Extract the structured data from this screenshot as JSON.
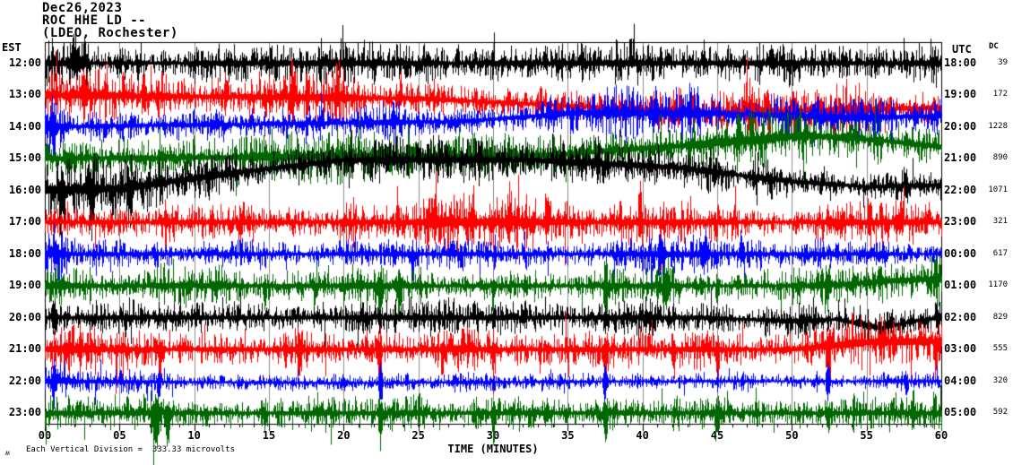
{
  "header": {
    "date": "Dec26,2023",
    "station": "ROC HHE LD --",
    "location": "(LDEO, Rochester)"
  },
  "axes": {
    "left_header": "EST",
    "right_header": "UTC",
    "dc_header": "DC",
    "x_title": "TIME (MINUTES)",
    "x_tick_labels": [
      "00",
      "05",
      "10",
      "15",
      "20",
      "25",
      "30",
      "35",
      "40",
      "45",
      "50",
      "55",
      "60"
    ],
    "x_min": 0,
    "x_max": 60,
    "x_tick_step": 5
  },
  "footnote": {
    "mark": "ʍ",
    "text": "Each Vertical Division =  333.33 microvolts"
  },
  "colors": {
    "background": "#ffffff",
    "border": "#000000",
    "grid": "#8c8c8c",
    "trace_black": "#000000",
    "trace_red": "#ff0000",
    "trace_blue": "#0000ff",
    "trace_green": "#006600"
  },
  "chart_data": {
    "type": "line",
    "subtype": "helicorder-seismogram",
    "title": "ROC HHE LD -- (LDEO, Rochester) Dec26,2023",
    "xlabel": "TIME (MINUTES)",
    "x_range": [
      0,
      60
    ],
    "grid": "vertical gray lines every 5 minutes",
    "vertical_division_microvolts": 333.33,
    "left_axis_label": "EST",
    "right_axis_label": "UTC",
    "dc_column_label": "DC",
    "traces": [
      {
        "est": "12:00",
        "utc": "18:00",
        "dc": 39,
        "color": "#000000",
        "amp": 12,
        "env": [
          [
            0,
            3,
            1.7
          ]
        ],
        "drift": [
          [
            0,
            0
          ],
          [
            60,
            0
          ]
        ],
        "spikes": [
          [
            2,
            0.5,
            14,
            10
          ],
          [
            27.6,
            0.2,
            26,
            6
          ],
          [
            33.5,
            0.15,
            20,
            5
          ],
          [
            41.2,
            0.15,
            18,
            5
          ],
          [
            44.1,
            0.15,
            20,
            5
          ],
          [
            48.6,
            0.2,
            24,
            6
          ],
          [
            55.8,
            0.15,
            16,
            5
          ]
        ]
      },
      {
        "est": "13:00",
        "utc": "19:00",
        "dc": 172,
        "color": "#ff0000",
        "amp": 13,
        "env": [
          [
            0,
            22,
            1.2
          ],
          [
            45,
            56,
            1.35
          ]
        ],
        "drift": [
          [
            0,
            0
          ],
          [
            25,
            4
          ],
          [
            35,
            12
          ],
          [
            45,
            20
          ],
          [
            50,
            18
          ],
          [
            60,
            14
          ]
        ],
        "spikes": [
          [
            2.6,
            0.2,
            26,
            8
          ],
          [
            6.6,
            0.2,
            24,
            8
          ],
          [
            12.1,
            0.2,
            22,
            8
          ],
          [
            16.6,
            0.15,
            28,
            8
          ],
          [
            19.6,
            0.15,
            24,
            6
          ],
          [
            23.8,
            0.12,
            34,
            6
          ],
          [
            47.2,
            0.3,
            18,
            16
          ],
          [
            50.1,
            0.3,
            20,
            16
          ]
        ]
      },
      {
        "est": "14:00",
        "utc": "20:00",
        "dc": 1228,
        "color": "#0000ff",
        "amp": 11,
        "env": [
          [
            0,
            1.5,
            1.8
          ],
          [
            33,
            50,
            1.25
          ]
        ],
        "drift": [
          [
            0,
            0
          ],
          [
            28,
            -6
          ],
          [
            36,
            -16
          ],
          [
            47,
            -14
          ],
          [
            54,
            -10
          ],
          [
            60,
            -12
          ]
        ],
        "spikes": [
          [
            0.5,
            0.3,
            22,
            18
          ],
          [
            40.9,
            0.2,
            28,
            10
          ],
          [
            43.1,
            0.2,
            24,
            8
          ],
          [
            58.2,
            0.15,
            18,
            16
          ]
        ]
      },
      {
        "est": "15:00",
        "utc": "21:00",
        "dc": 890,
        "color": "#006600",
        "amp": 11,
        "env": [
          [
            0,
            30,
            1.3
          ],
          [
            43,
            56,
            1.65
          ],
          [
            56,
            60,
            1.2
          ]
        ],
        "drift": [
          [
            0,
            0
          ],
          [
            34,
            -4
          ],
          [
            44,
            -16
          ],
          [
            51,
            -26
          ],
          [
            56,
            -20
          ],
          [
            60,
            -13
          ]
        ],
        "spikes": [
          [
            1.6,
            0.3,
            8,
            28
          ],
          [
            3.3,
            0.2,
            6,
            24
          ],
          [
            7.6,
            0.12,
            8,
            16
          ],
          [
            23.1,
            0.2,
            10,
            22
          ]
        ]
      },
      {
        "est": "16:00",
        "utc": "22:00",
        "dc": 1071,
        "color": "#000000",
        "amp": 13,
        "env": [
          [
            0,
            8,
            1.45
          ],
          [
            55,
            60,
            1.15
          ]
        ],
        "drift": [
          [
            0,
            0
          ],
          [
            5,
            -2
          ],
          [
            12,
            -18
          ],
          [
            20,
            -34
          ],
          [
            32,
            -34
          ],
          [
            42,
            -26
          ],
          [
            50,
            -10
          ],
          [
            55,
            -4
          ],
          [
            60,
            -6
          ]
        ],
        "spikes": [
          [
            1.1,
            0.3,
            8,
            36
          ],
          [
            3.1,
            0.3,
            8,
            42
          ],
          [
            5.6,
            0.2,
            8,
            32
          ],
          [
            57.6,
            0.2,
            22,
            10
          ]
        ]
      },
      {
        "est": "17:00",
        "utc": "23:00",
        "dc": 321,
        "color": "#ff0000",
        "amp": 12,
        "env": [
          [
            20,
            36,
            1.4
          ]
        ],
        "drift": [
          [
            0,
            0
          ],
          [
            60,
            0
          ]
        ],
        "spikes": [
          [
            8.1,
            0.15,
            16,
            10
          ],
          [
            23.6,
            0.2,
            28,
            14
          ],
          [
            26.1,
            0.2,
            32,
            12
          ],
          [
            28.6,
            0.2,
            28,
            16
          ],
          [
            31.1,
            0.2,
            34,
            12
          ],
          [
            33.6,
            0.2,
            28,
            12
          ],
          [
            39.8,
            0.15,
            36,
            10
          ],
          [
            55.2,
            0.2,
            18,
            8
          ]
        ]
      },
      {
        "est": "18:00",
        "utc": "00:00",
        "dc": 617,
        "color": "#0000ff",
        "amp": 9,
        "env": [
          [
            0,
            2,
            1.7
          ],
          [
            38,
            48,
            1.35
          ]
        ],
        "drift": [
          [
            0,
            0
          ],
          [
            60,
            0
          ]
        ],
        "spikes": [
          [
            0.7,
            0.2,
            20,
            16
          ],
          [
            24.6,
            0.2,
            6,
            26
          ],
          [
            30.1,
            0.1,
            10,
            18
          ],
          [
            41.2,
            0.25,
            26,
            14
          ],
          [
            44.2,
            0.25,
            28,
            12
          ],
          [
            46.6,
            0.2,
            24,
            10
          ]
        ]
      },
      {
        "est": "19:00",
        "utc": "01:00",
        "dc": 1170,
        "color": "#006600",
        "amp": 11,
        "env": [
          [
            0,
            10,
            1.15
          ],
          [
            10,
            26,
            1.3
          ],
          [
            50,
            60,
            1.45
          ]
        ],
        "drift": [
          [
            0,
            0
          ],
          [
            52,
            0
          ],
          [
            57,
            -6
          ],
          [
            60,
            -8
          ]
        ],
        "spikes": [
          [
            14.7,
            0.15,
            8,
            32
          ],
          [
            22.4,
            0.25,
            10,
            44
          ],
          [
            23.7,
            0.2,
            8,
            36
          ],
          [
            30,
            0.15,
            8,
            28
          ],
          [
            37.5,
            0.2,
            10,
            46
          ],
          [
            41.6,
            0.3,
            22,
            22
          ],
          [
            45,
            0.15,
            8,
            28
          ],
          [
            52.4,
            0.15,
            8,
            26
          ]
        ]
      },
      {
        "est": "20:00",
        "utc": "02:00",
        "dc": 829,
        "color": "#000000",
        "amp": 10,
        "env": [
          [
            40,
            60,
            1.1
          ]
        ],
        "drift": [
          [
            0,
            0
          ],
          [
            44,
            0
          ],
          [
            50,
            4
          ],
          [
            53,
            2
          ],
          [
            56,
            12
          ],
          [
            58,
            4
          ],
          [
            60,
            0
          ]
        ],
        "spikes": [
          [
            0.6,
            0.2,
            14,
            10
          ],
          [
            7.6,
            0.1,
            6,
            16
          ],
          [
            22.4,
            0.15,
            8,
            18
          ],
          [
            30,
            0.1,
            6,
            14
          ],
          [
            37.5,
            0.15,
            8,
            18
          ],
          [
            52.4,
            0.1,
            6,
            14
          ]
        ]
      },
      {
        "est": "21:00",
        "utc": "03:00",
        "dc": 555,
        "color": "#ff0000",
        "amp": 12,
        "env": [
          [
            0,
            10,
            1.1
          ],
          [
            52,
            60,
            1.15
          ]
        ],
        "drift": [
          [
            0,
            0
          ],
          [
            50,
            0
          ],
          [
            55,
            -8
          ],
          [
            60,
            -9
          ]
        ],
        "spikes": [
          [
            7.7,
            0.2,
            12,
            38
          ],
          [
            17,
            0.2,
            10,
            40
          ],
          [
            21.5,
            0.15,
            20,
            10
          ],
          [
            22.4,
            0.2,
            12,
            44
          ],
          [
            26.6,
            0.15,
            8,
            26
          ],
          [
            30,
            0.2,
            10,
            42
          ],
          [
            33.1,
            0.15,
            8,
            24
          ],
          [
            37.5,
            0.2,
            12,
            46
          ],
          [
            42.1,
            0.15,
            8,
            26
          ],
          [
            45,
            0.15,
            8,
            30
          ],
          [
            52.4,
            0.2,
            12,
            42
          ],
          [
            59.6,
            0.15,
            8,
            50
          ]
        ]
      },
      {
        "est": "22:00",
        "utc": "04:00",
        "dc": 320,
        "color": "#0000ff",
        "amp": 6,
        "env": [
          [
            0,
            1.5,
            2
          ],
          [
            57,
            60,
            1.3
          ]
        ],
        "drift": [
          [
            0,
            0
          ],
          [
            20,
            2
          ],
          [
            40,
            0
          ],
          [
            60,
            0
          ]
        ],
        "spikes": [
          [
            0.6,
            0.25,
            24,
            20
          ],
          [
            7.6,
            0.15,
            10,
            26
          ],
          [
            22.45,
            0.2,
            26,
            30
          ],
          [
            30,
            0.1,
            8,
            14
          ],
          [
            37.5,
            0.2,
            24,
            28
          ],
          [
            45,
            0.1,
            8,
            12
          ],
          [
            52.4,
            0.2,
            22,
            26
          ],
          [
            57.6,
            0.15,
            10,
            16
          ]
        ]
      },
      {
        "est": "23:00",
        "utc": "05:00",
        "dc": 592,
        "color": "#006600",
        "amp": 12,
        "env": [
          [
            0,
            5,
            1.15
          ]
        ],
        "drift": [
          [
            0,
            0
          ],
          [
            60,
            0
          ]
        ],
        "spikes": [
          [
            7.4,
            0.4,
            12,
            36
          ],
          [
            8.2,
            0.3,
            10,
            40
          ],
          [
            14.7,
            0.15,
            6,
            22
          ],
          [
            22.45,
            0.2,
            10,
            36
          ],
          [
            30,
            0.2,
            8,
            34
          ],
          [
            33.6,
            0.2,
            18,
            18
          ],
          [
            37.5,
            0.2,
            10,
            38
          ],
          [
            45,
            0.2,
            8,
            32
          ],
          [
            52.4,
            0.2,
            10,
            36
          ],
          [
            58.1,
            0.2,
            14,
            18
          ],
          [
            59.5,
            0.15,
            26,
            10
          ]
        ]
      }
    ]
  }
}
